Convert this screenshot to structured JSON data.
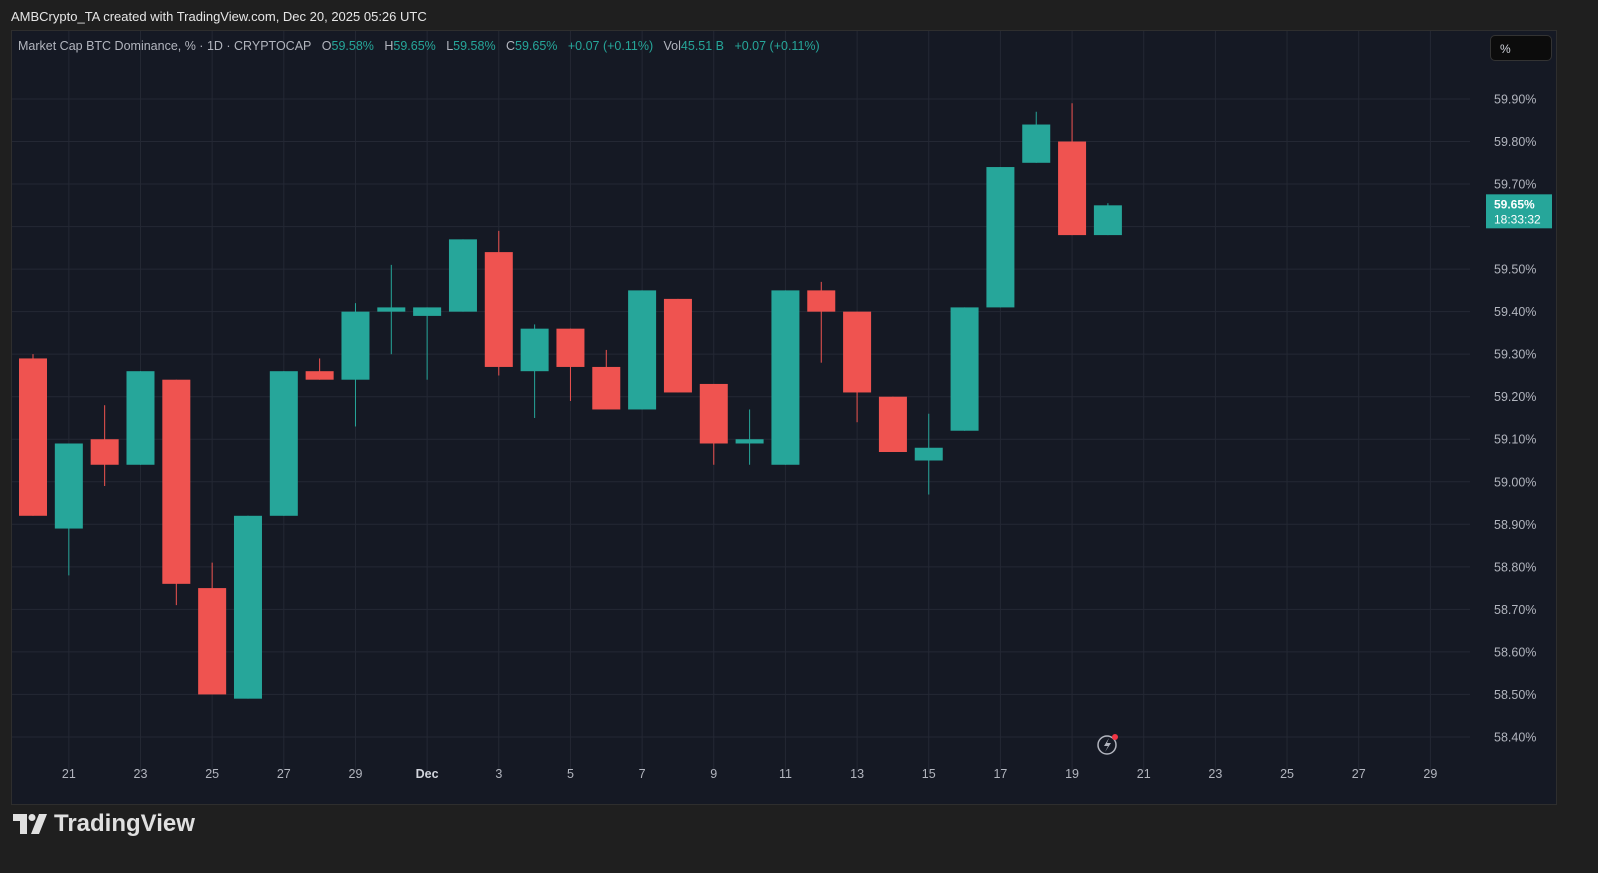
{
  "credit": "AMBCrypto_TA created with TradingView.com, Dec 20, 2025 05:26 UTC",
  "legend": {
    "symbol": "Market Cap BTC Dominance, % · 1D · CRYPTOCAP",
    "o_label": "O",
    "o": "59.58%",
    "h_label": "H",
    "h": "59.65%",
    "l_label": "L",
    "l": "59.58%",
    "c_label": "C",
    "c": "59.65%",
    "change": "+0.07 (+0.11%)",
    "vol_label": "Vol",
    "vol": "45.51 B",
    "vol_change": "+0.07 (+0.11%)"
  },
  "unit_button": "%",
  "brand": "TradingView",
  "colors": {
    "up": "#26a69a",
    "down": "#ef5350",
    "background": "#151924",
    "grid": "#242834",
    "text": "#b2b5be"
  },
  "chart_data": {
    "type": "candlestick",
    "title": "Market Cap BTC Dominance, % · 1D · CRYPTOCAP",
    "dates": [
      "Nov 20",
      "Nov 21",
      "Nov 22",
      "Nov 23",
      "Nov 24",
      "Nov 25",
      "Nov 26",
      "Nov 27",
      "Nov 28",
      "Nov 29",
      "Nov 30",
      "Dec 1",
      "Dec 2",
      "Dec 3",
      "Dec 4",
      "Dec 5",
      "Dec 6",
      "Dec 7",
      "Dec 8",
      "Dec 9",
      "Dec 10",
      "Dec 11",
      "Dec 12",
      "Dec 13",
      "Dec 14",
      "Dec 15",
      "Dec 16",
      "Dec 17",
      "Dec 18",
      "Dec 19",
      "Dec 20"
    ],
    "open": [
      59.29,
      58.89,
      59.1,
      59.04,
      59.24,
      58.75,
      58.49,
      58.92,
      59.26,
      59.24,
      59.4,
      59.39,
      59.4,
      59.54,
      59.26,
      59.36,
      59.27,
      59.17,
      59.43,
      59.23,
      59.09,
      59.04,
      59.45,
      59.4,
      59.2,
      59.05,
      59.12,
      59.41,
      59.75,
      59.8,
      59.58
    ],
    "high": [
      59.3,
      59.09,
      59.18,
      59.26,
      59.24,
      58.81,
      58.92,
      59.26,
      59.29,
      59.42,
      59.51,
      59.41,
      59.57,
      59.59,
      59.37,
      59.36,
      59.31,
      59.45,
      59.43,
      59.23,
      59.17,
      59.45,
      59.47,
      59.4,
      59.2,
      59.16,
      59.41,
      59.74,
      59.87,
      59.89,
      59.655
    ],
    "low": [
      58.92,
      58.78,
      58.99,
      59.04,
      58.71,
      58.5,
      58.49,
      58.92,
      59.24,
      59.13,
      59.3,
      59.24,
      59.4,
      59.25,
      59.15,
      59.19,
      59.17,
      59.17,
      59.21,
      59.04,
      59.04,
      59.04,
      59.28,
      59.14,
      59.07,
      58.97,
      59.12,
      59.41,
      59.75,
      59.58,
      59.58
    ],
    "close": [
      58.92,
      59.09,
      59.04,
      59.26,
      58.76,
      58.5,
      58.92,
      59.26,
      59.24,
      59.4,
      59.41,
      59.41,
      59.57,
      59.27,
      59.36,
      59.27,
      59.17,
      59.45,
      59.21,
      59.09,
      59.1,
      59.45,
      59.4,
      59.21,
      59.07,
      59.08,
      59.41,
      59.74,
      59.84,
      59.58,
      59.65
    ],
    "yticks": [
      "59.90%",
      "59.80%",
      "59.70%",
      "59.50%",
      "59.40%",
      "59.30%",
      "59.20%",
      "59.10%",
      "59.00%",
      "58.90%",
      "58.80%",
      "58.70%",
      "58.60%",
      "58.50%",
      "58.40%"
    ],
    "ytick_values": [
      59.9,
      59.8,
      59.7,
      59.5,
      59.4,
      59.3,
      59.2,
      59.1,
      59.0,
      58.9,
      58.8,
      58.7,
      58.6,
      58.5,
      58.4
    ],
    "xticks": [
      "21",
      "23",
      "25",
      "27",
      "29",
      "Dec",
      "3",
      "5",
      "7",
      "9",
      "11",
      "13",
      "15",
      "17",
      "19",
      "21",
      "23",
      "25",
      "27",
      "29"
    ],
    "xtick_dates": [
      "Nov 21",
      "Nov 23",
      "Nov 25",
      "Nov 27",
      "Nov 29",
      "Dec 1",
      "Dec 3",
      "Dec 5",
      "Dec 7",
      "Dec 9",
      "Dec 11",
      "Dec 13",
      "Dec 15",
      "Dec 17",
      "Dec 19",
      "Dec 21",
      "Dec 23",
      "Dec 25",
      "Dec 27",
      "Dec 29"
    ],
    "ylim": [
      58.36,
      60.0
    ],
    "last_price": {
      "value": "59.65%",
      "countdown": "18:33:32"
    },
    "grid": true
  }
}
